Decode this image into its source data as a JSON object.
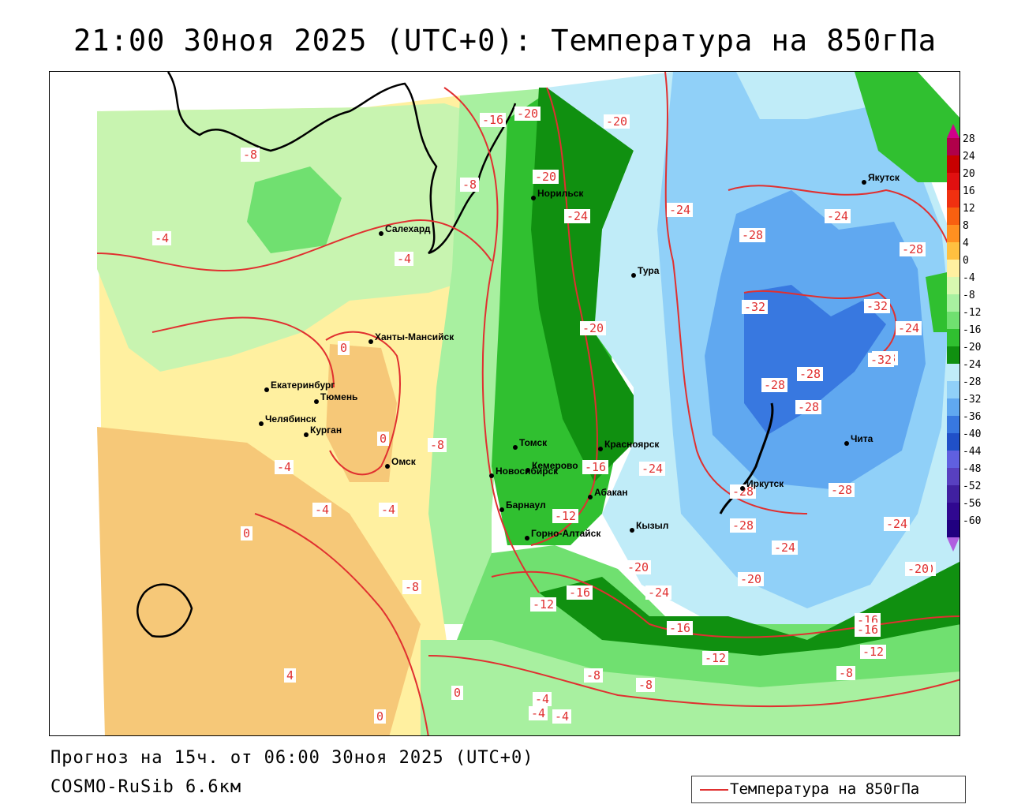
{
  "title": "21:00 30ноя 2025 (UTC+0): Температура на 850гПа",
  "footer": {
    "forecast": "Прогноз на 15ч. от 06:00 30ноя 2025 (UTC+0)",
    "model": "COSMO-RuSib 6.6км"
  },
  "legend": {
    "label": "Температура на 850гПа",
    "line_color": "#e03030"
  },
  "colorbar": {
    "labels": [
      "28",
      "24",
      "20",
      "16",
      "12",
      "8",
      "4",
      "0",
      "-4",
      "-8",
      "-12",
      "-16",
      "-20",
      "-24",
      "-28",
      "-32",
      "-36",
      "-40",
      "-44",
      "-48",
      "-52",
      "-56",
      "-60"
    ],
    "colors": [
      "#b0004a",
      "#c80000",
      "#e01010",
      "#f03010",
      "#f86010",
      "#ff9020",
      "#ffc040",
      "#fff0a0",
      "#d8f8b0",
      "#a8f0a0",
      "#70e070",
      "#30c030",
      "#109010",
      "#c0ecf8",
      "#90d0f8",
      "#60a8f0",
      "#3878e0",
      "#2050c8",
      "#6060e0",
      "#5840c0",
      "#4020a0",
      "#300890",
      "#200080"
    ],
    "arrow_top": "#d0008a",
    "arrow_bottom": "#b060e0"
  },
  "cities": [
    {
      "name": "Якутск"
    },
    {
      "name": "Норильск"
    },
    {
      "name": "Салехард"
    },
    {
      "name": "Тура"
    },
    {
      "name": "Ханты-Мансийск"
    },
    {
      "name": "Екатеринбург"
    },
    {
      "name": "Тюмень"
    },
    {
      "name": "Челябинск"
    },
    {
      "name": "Курган"
    },
    {
      "name": "Омск"
    },
    {
      "name": "Новосибирск"
    },
    {
      "name": "Томск"
    },
    {
      "name": "Кемерово"
    },
    {
      "name": "Красноярск"
    },
    {
      "name": "Абакан"
    },
    {
      "name": "Барнаул"
    },
    {
      "name": "Горно-Алтайск"
    },
    {
      "name": "Кызыл"
    },
    {
      "name": "Иркутск"
    },
    {
      "name": "Чита"
    }
  ],
  "contour_labels": [
    "-16",
    "-20",
    "-20",
    "-8",
    "-8",
    "-20",
    "-24",
    "-24",
    "-24",
    "-28",
    "-28",
    "-4",
    "-4",
    "-20",
    "-32",
    "-32",
    "-24",
    "-28",
    "-28",
    "0",
    "-28",
    "-32",
    "-28",
    "0",
    "-8",
    "-4",
    "-16",
    "-24",
    "-28",
    "-28",
    "-4",
    "-4",
    "-12",
    "0",
    "-28",
    "-24",
    "-24",
    "-8",
    "-20",
    "-20",
    "-24",
    "-16",
    "-12",
    "-16",
    "-20",
    "-20",
    "-16",
    "-12",
    "-16",
    "-12",
    "-4",
    "-8",
    "-8",
    "-8",
    "0",
    "-4",
    "4",
    "0",
    "-4"
  ]
}
